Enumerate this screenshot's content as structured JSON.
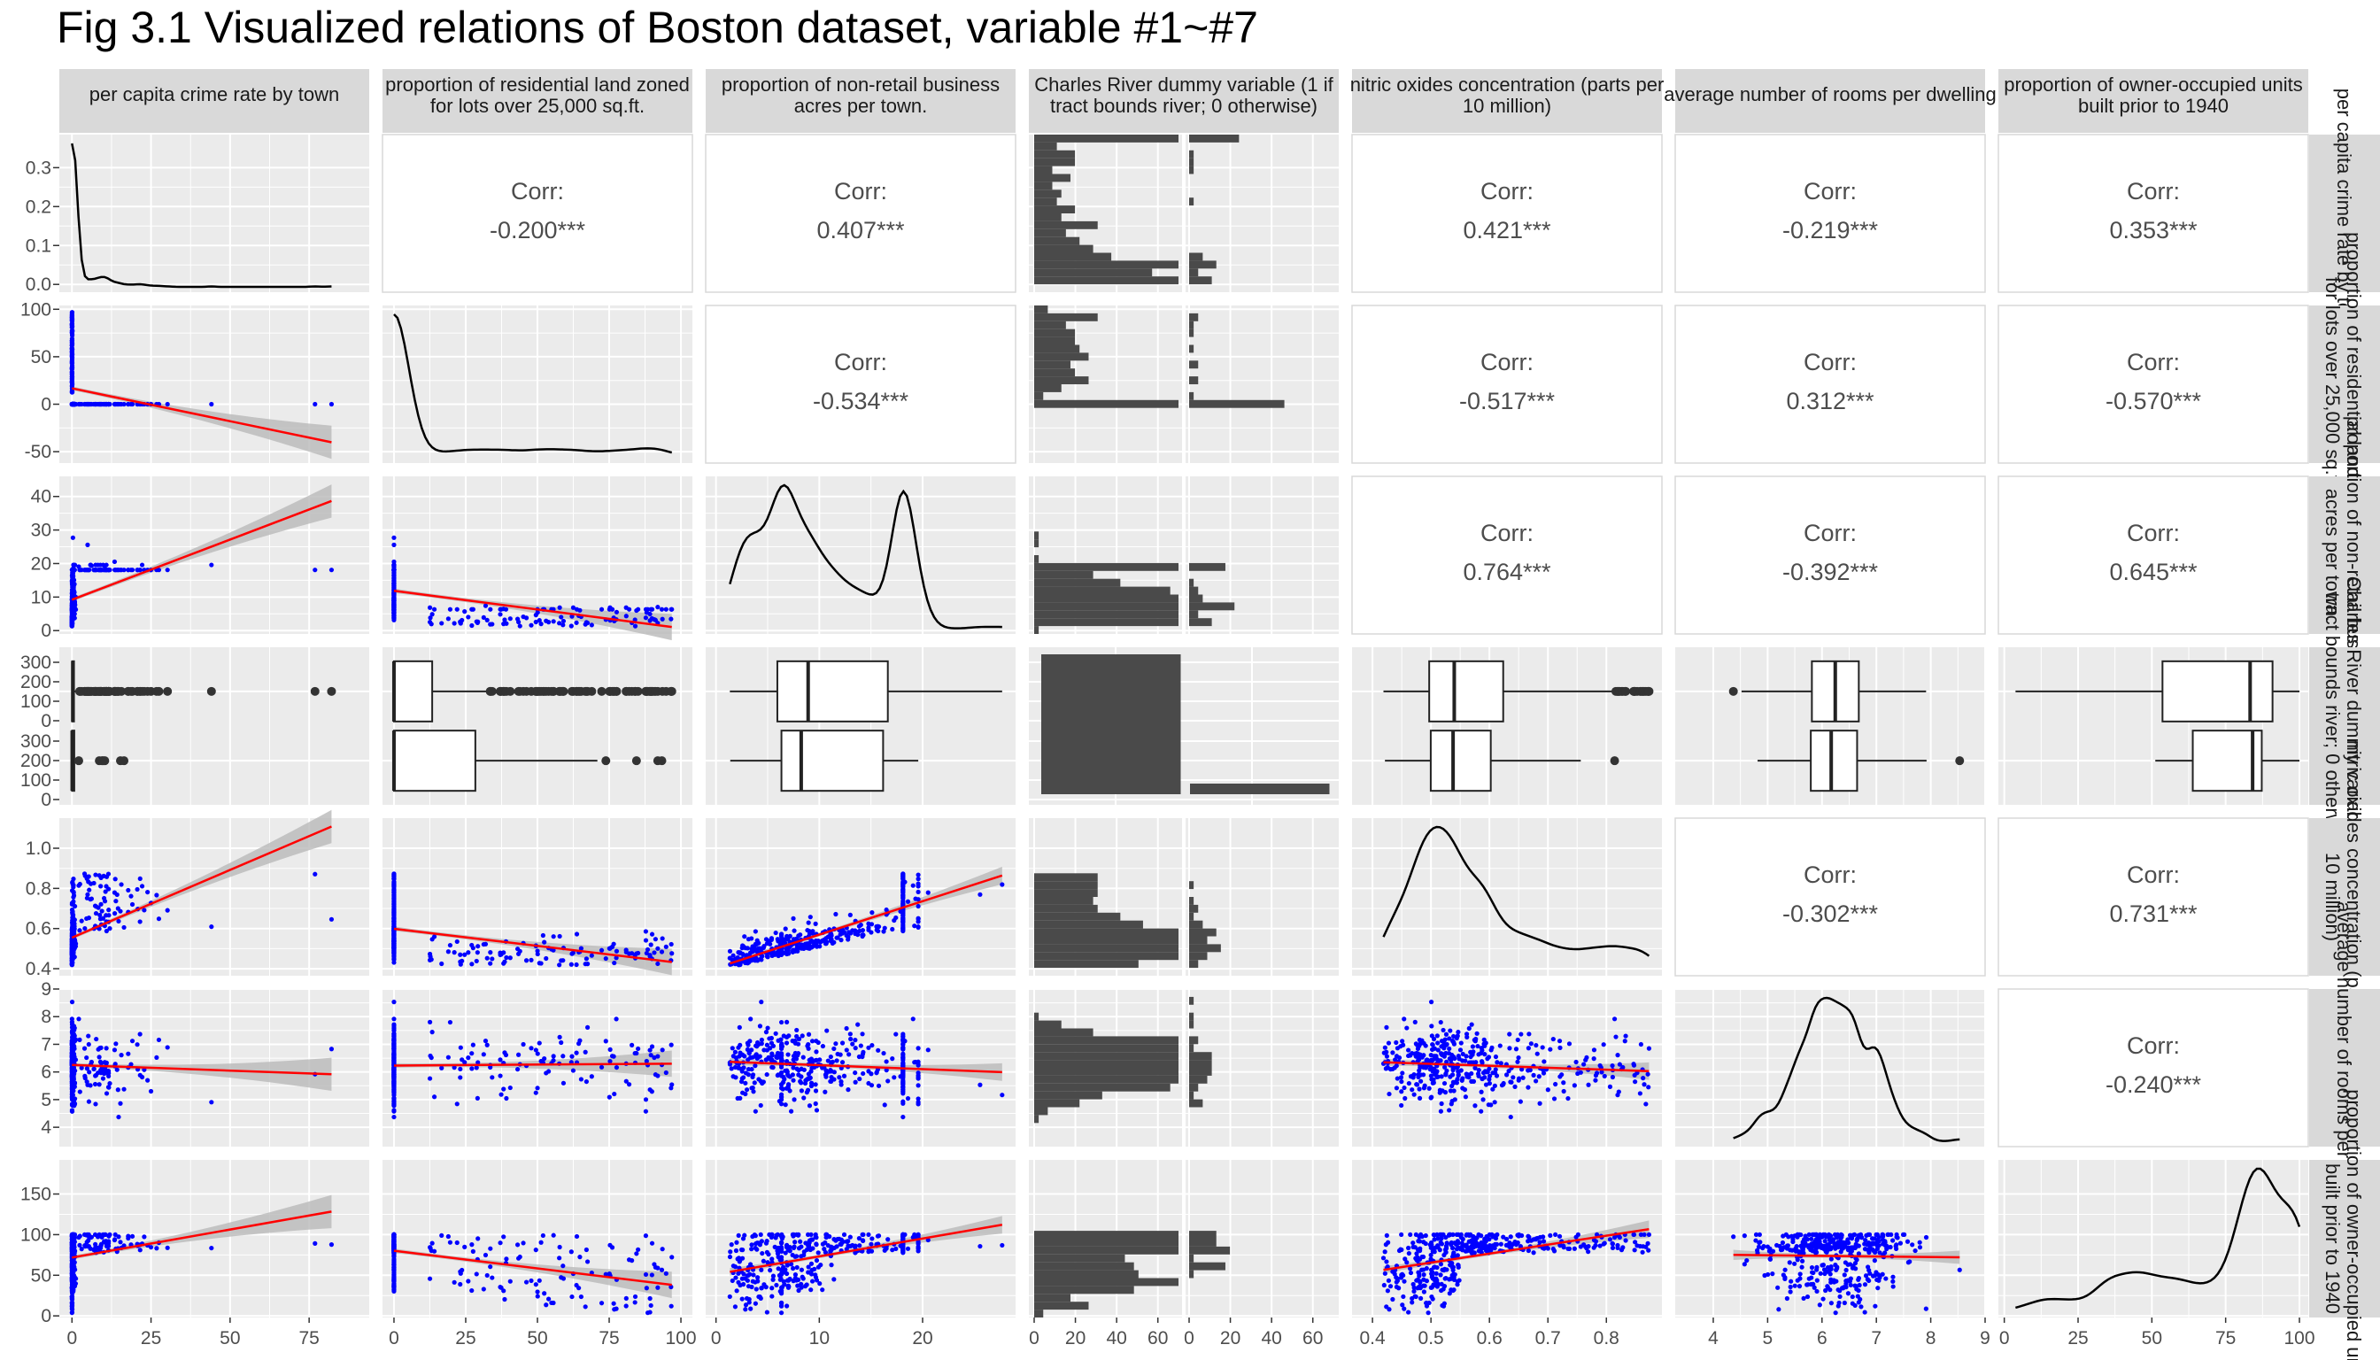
{
  "chart_data": {
    "type": "scatter",
    "title": "Fig 3.1 Visualized relations of Boston dataset, variable #1~#7",
    "corr_label": "Corr:",
    "variables": [
      {
        "label": "per capita crime rate by town",
        "strip": "per capita crime rate by town",
        "kind": "cont",
        "range": [
          -4,
          94
        ],
        "ticks": [
          0,
          25,
          50,
          75
        ]
      },
      {
        "label": "proportion of residential land zoned for lots over 25,000 sq.ft.",
        "strip": "proportion of residential land zoned for lots over 25,000 sq.ft.",
        "kind": "cont",
        "range": [
          -4,
          104
        ],
        "ticks": [
          0,
          25,
          50,
          75,
          100
        ]
      },
      {
        "label": "proportion of non-retail business acres per town.",
        "strip": "proportion of non-retail business acres per town.",
        "kind": "cont",
        "range": [
          -1,
          29
        ],
        "ticks": [
          0,
          10,
          20
        ]
      },
      {
        "label": "Charles River dummy variable (1 if tract bounds river; 0 otherwise)",
        "strip": "Charles River dummy variable (1 if tract bounds river; 0 otherwise)",
        "kind": "cat"
      },
      {
        "label": "nitric oxides concentration (parts per 10 million)",
        "strip": "nitric oxides concentration (parts per 10 million)",
        "kind": "cont",
        "range": [
          0.365,
          0.895
        ],
        "ticks": [
          0.4,
          0.5,
          0.6,
          0.7,
          0.8
        ]
      },
      {
        "label": "average number of rooms per dwelling",
        "strip": "average number of rooms per dwelling",
        "kind": "cont",
        "range": [
          3.3,
          9.0
        ],
        "ticks": [
          4,
          5,
          6,
          7,
          8,
          9
        ]
      },
      {
        "label": "proportion of owner-occupied units built prior to 1940",
        "strip": "proportion of owner-occupied units built prior to 1940",
        "kind": "cont",
        "range": [
          -2,
          103
        ],
        "ticks": [
          0,
          25,
          50,
          75,
          100
        ]
      }
    ],
    "correlations": [
      {
        "row": 1,
        "col": 2,
        "text": "-0.200***"
      },
      {
        "row": 1,
        "col": 3,
        "text": "0.407***"
      },
      {
        "row": 1,
        "col": 5,
        "text": "0.421***"
      },
      {
        "row": 1,
        "col": 6,
        "text": "-0.219***"
      },
      {
        "row": 1,
        "col": 7,
        "text": "0.353***"
      },
      {
        "row": 2,
        "col": 3,
        "text": "-0.534***"
      },
      {
        "row": 2,
        "col": 5,
        "text": "-0.517***"
      },
      {
        "row": 2,
        "col": 6,
        "text": "0.312***"
      },
      {
        "row": 2,
        "col": 7,
        "text": "-0.570***"
      },
      {
        "row": 3,
        "col": 5,
        "text": "0.764***"
      },
      {
        "row": 3,
        "col": 6,
        "text": "-0.392***"
      },
      {
        "row": 3,
        "col": 7,
        "text": "0.645***"
      },
      {
        "row": 5,
        "col": 6,
        "text": "-0.302***"
      },
      {
        "row": 5,
        "col": 7,
        "text": "0.731***"
      },
      {
        "row": 6,
        "col": 7,
        "text": "-0.240***"
      }
    ],
    "diag_y": [
      {
        "range": [
          -0.02,
          0.385
        ],
        "ticks": [
          0.0,
          0.1,
          0.2,
          0.3
        ]
      },
      {
        "range": [
          -62,
          104
        ],
        "ticks": [
          -50,
          0,
          50,
          100
        ]
      },
      {
        "range": [
          -1,
          46
        ],
        "ticks": [
          0,
          10,
          20,
          30,
          40
        ]
      },
      {
        "upper_ticks": [
          0,
          100,
          200,
          300
        ],
        "lower_ticks": [
          0,
          100,
          200,
          300
        ]
      },
      {
        "range": [
          0.365,
          1.15
        ],
        "ticks": [
          0.4,
          0.6,
          0.8,
          1.0
        ]
      },
      {
        "range": [
          3.3,
          9.0
        ],
        "ticks": [
          4,
          5,
          6,
          7,
          8,
          9
        ]
      },
      {
        "range": [
          -2,
          192
        ],
        "ticks": [
          0,
          50,
          100,
          150
        ]
      }
    ],
    "count_ticks": [
      0,
      20,
      40,
      60
    ],
    "series": [
      {
        "name": "scatter points",
        "color": "#0000ff"
      },
      {
        "name": "linear fit",
        "color": "#ff0000"
      }
    ],
    "colors": {
      "panel": "#ebebeb",
      "grid": "#ffffff",
      "strip": "#d9d9d9",
      "text": "#4d4d4d",
      "axis_text": "#4d4d4d",
      "bar": "#4a4a4a",
      "ribbon": "#b9b9b9"
    }
  }
}
